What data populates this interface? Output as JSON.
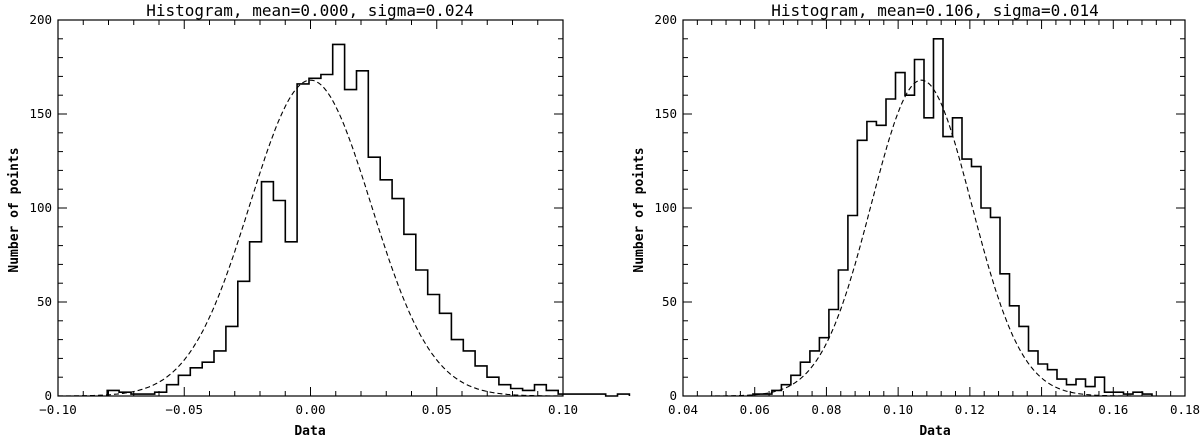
{
  "chart_data": [
    {
      "type": "bar",
      "title": "Histogram, mean=0.000, sigma=0.024",
      "xlabel": "Data",
      "ylabel": "Number of points",
      "xlim": [
        -0.1,
        0.1
      ],
      "ylim": [
        0,
        200
      ],
      "xticks": [
        -0.1,
        -0.05,
        0.0,
        0.05,
        0.1
      ],
      "xtick_labels": [
        "−0.10",
        "−0.05",
        "0.00",
        "0.05",
        "0.10"
      ],
      "yticks": [
        0,
        50,
        100,
        150,
        200
      ],
      "ytick_labels": [
        "0",
        "50",
        "100",
        "150",
        "200"
      ],
      "grid": false,
      "histogram": {
        "bin_start": -0.0805,
        "bin_width": 0.0047,
        "counts": [
          3,
          2,
          1,
          1,
          2,
          6,
          11,
          15,
          18,
          24,
          37,
          61,
          82,
          114,
          104,
          82,
          166,
          169,
          171,
          187,
          163,
          173,
          127,
          115,
          105,
          86,
          67,
          54,
          44,
          30,
          24,
          16,
          10,
          6,
          4,
          3,
          6,
          3,
          1,
          1,
          1,
          1,
          0,
          1
        ]
      },
      "fit": {
        "type": "gaussian",
        "mean": 0.0,
        "sigma": 0.024,
        "peak": 168
      }
    },
    {
      "type": "bar",
      "title": "Histogram, mean=0.106, sigma=0.014",
      "xlabel": "Data",
      "ylabel": "Number of points",
      "xlim": [
        0.04,
        0.18
      ],
      "ylim": [
        0,
        200
      ],
      "xticks": [
        0.04,
        0.06,
        0.08,
        0.1,
        0.12,
        0.14,
        0.16,
        0.18
      ],
      "xtick_labels": [
        "0.04",
        "0.06",
        "0.08",
        "0.10",
        "0.12",
        "0.14",
        "0.16",
        "0.18"
      ],
      "yticks": [
        0,
        50,
        100,
        150,
        200
      ],
      "ytick_labels": [
        "0",
        "50",
        "100",
        "150",
        "200"
      ],
      "grid": false,
      "histogram": {
        "bin_start": 0.0595,
        "bin_width": 0.00265,
        "counts": [
          1,
          1,
          3,
          6,
          11,
          18,
          24,
          31,
          46,
          67,
          96,
          136,
          146,
          144,
          158,
          172,
          160,
          179,
          148,
          190,
          138,
          148,
          126,
          122,
          100,
          95,
          65,
          48,
          37,
          24,
          17,
          14,
          9,
          6,
          9,
          5,
          10,
          2,
          2,
          1,
          2,
          1
        ]
      },
      "fit": {
        "type": "gaussian",
        "mean": 0.1065,
        "sigma": 0.014,
        "peak": 168
      }
    }
  ]
}
